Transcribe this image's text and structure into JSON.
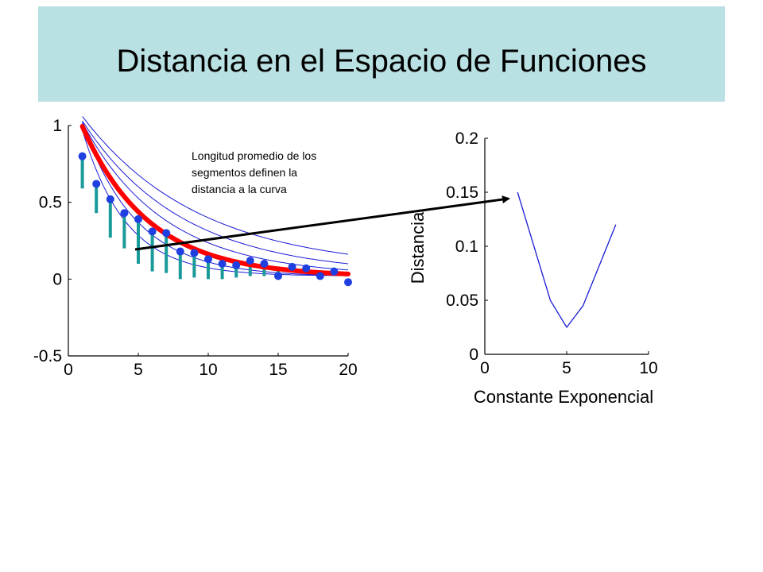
{
  "slide": {
    "title": "Distancia en el Espacio de Funciones",
    "annotation": [
      "Longitud promedio de los",
      "segmentos definen la",
      "distancia a la curva"
    ]
  },
  "colors": {
    "title_bg": "#b9e0e2",
    "data_points": "#1f3fe0",
    "fit_curve": "#ff0000",
    "residual_segments": "#1a9a9a",
    "family_curves": "#1a1ad6",
    "distance_line": "#1a1ad6",
    "arrow": "#000000"
  },
  "chart_data": [
    {
      "type": "scatter",
      "xlim": [
        0,
        20
      ],
      "ylim": [
        -0.5,
        1
      ],
      "x_ticks": [
        "0",
        "5",
        "10",
        "15",
        "20"
      ],
      "y_ticks": [
        "1",
        "0.5",
        "0",
        "-0.5"
      ],
      "x_tick_values": [
        0,
        5,
        10,
        15,
        20
      ],
      "y_tick_values": [
        1,
        0.5,
        0,
        -0.5
      ],
      "points": {
        "x": [
          1,
          2,
          3,
          4,
          5,
          6,
          7,
          8,
          9,
          10,
          11,
          12,
          13,
          14,
          15,
          16,
          17,
          18,
          19,
          20
        ],
        "y": [
          0.8,
          0.62,
          0.52,
          0.43,
          0.39,
          0.31,
          0.3,
          0.18,
          0.17,
          0.13,
          0.1,
          0.09,
          0.12,
          0.1,
          0.02,
          0.08,
          0.07,
          0.02,
          0.05,
          -0.02
        ]
      },
      "fit_curve": {
        "amplitude": 0.98,
        "rate": 0.21,
        "offset": 0.015
      },
      "family_curves": [
        {
          "amplitude": 0.95,
          "rate": 0.32,
          "offset": 0.02
        },
        {
          "amplitude": 1.0,
          "rate": 0.26,
          "offset": 0.015
        },
        {
          "amplitude": 1.0,
          "rate": 0.17,
          "offset": 0.02
        },
        {
          "amplitude": 1.0,
          "rate": 0.14,
          "offset": 0.03
        },
        {
          "amplitude": 1.0,
          "rate": 0.12,
          "offset": 0.06
        }
      ],
      "residual_segments": {
        "x": [
          1,
          2,
          3,
          4,
          5,
          6,
          7,
          8,
          9,
          10,
          11,
          12,
          13,
          14,
          15
        ],
        "y_top": [
          0.8,
          0.62,
          0.52,
          0.43,
          0.39,
          0.31,
          0.3,
          0.18,
          0.17,
          0.13,
          0.1,
          0.09,
          0.12,
          0.1,
          0.08
        ],
        "y_bottom": [
          0.59,
          0.43,
          0.27,
          0.2,
          0.1,
          0.05,
          0.04,
          0.0,
          0.01,
          0.0,
          0.0,
          0.01,
          0.02,
          0.02,
          0.02
        ]
      }
    },
    {
      "type": "line",
      "xlabel": "Constante Exponencial",
      "ylabel": "Distancia",
      "xlim": [
        0,
        10
      ],
      "ylim": [
        0,
        0.2
      ],
      "x_ticks": [
        "0",
        "5",
        "10"
      ],
      "y_ticks": [
        "0.2",
        "0.15",
        "0.1",
        "0.05",
        "0"
      ],
      "x_tick_values": [
        0,
        5,
        10
      ],
      "y_tick_values": [
        0.2,
        0.15,
        0.1,
        0.05,
        0
      ],
      "x": [
        2,
        4,
        5,
        6,
        8
      ],
      "y": [
        0.15,
        0.05,
        0.025,
        0.045,
        0.12
      ]
    }
  ]
}
